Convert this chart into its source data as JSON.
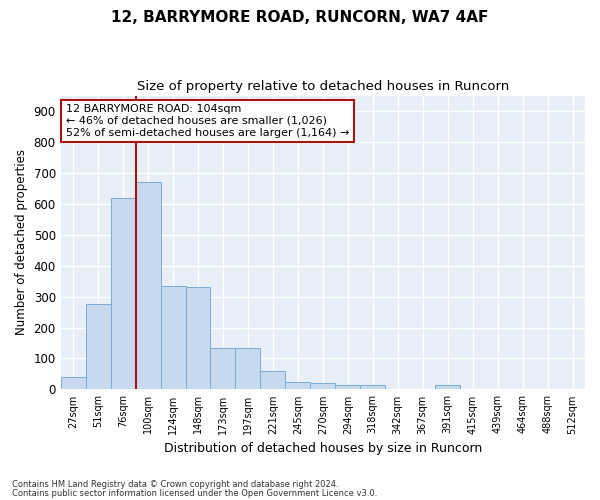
{
  "title": "12, BARRYMORE ROAD, RUNCORN, WA7 4AF",
  "subtitle": "Size of property relative to detached houses in Runcorn",
  "xlabel": "Distribution of detached houses by size in Runcorn",
  "ylabel": "Number of detached properties",
  "bar_labels": [
    "27sqm",
    "51sqm",
    "76sqm",
    "100sqm",
    "124sqm",
    "148sqm",
    "173sqm",
    "197sqm",
    "221sqm",
    "245sqm",
    "270sqm",
    "294sqm",
    "318sqm",
    "342sqm",
    "367sqm",
    "391sqm",
    "415sqm",
    "439sqm",
    "464sqm",
    "488sqm",
    "512sqm"
  ],
  "bar_heights": [
    40,
    275,
    620,
    670,
    335,
    330,
    135,
    135,
    60,
    25,
    20,
    15,
    15,
    0,
    0,
    15,
    0,
    0,
    0,
    0,
    0
  ],
  "bar_color": "#c8d8ee",
  "bar_edge_color": "#7aadd4",
  "background_color": "#e8eef8",
  "vline_color": "#aa1111",
  "annotation_text": "12 BARRYMORE ROAD: 104sqm\n← 46% of detached houses are smaller (1,026)\n52% of semi-detached houses are larger (1,164) →",
  "annotation_box_color": "#ffffff",
  "annotation_box_edge": "#aa1111",
  "ylim": [
    0,
    950
  ],
  "yticks": [
    0,
    100,
    200,
    300,
    400,
    500,
    600,
    700,
    800,
    900
  ],
  "footnote1": "Contains HM Land Registry data © Crown copyright and database right 2024.",
  "footnote2": "Contains public sector information licensed under the Open Government Licence v3.0."
}
